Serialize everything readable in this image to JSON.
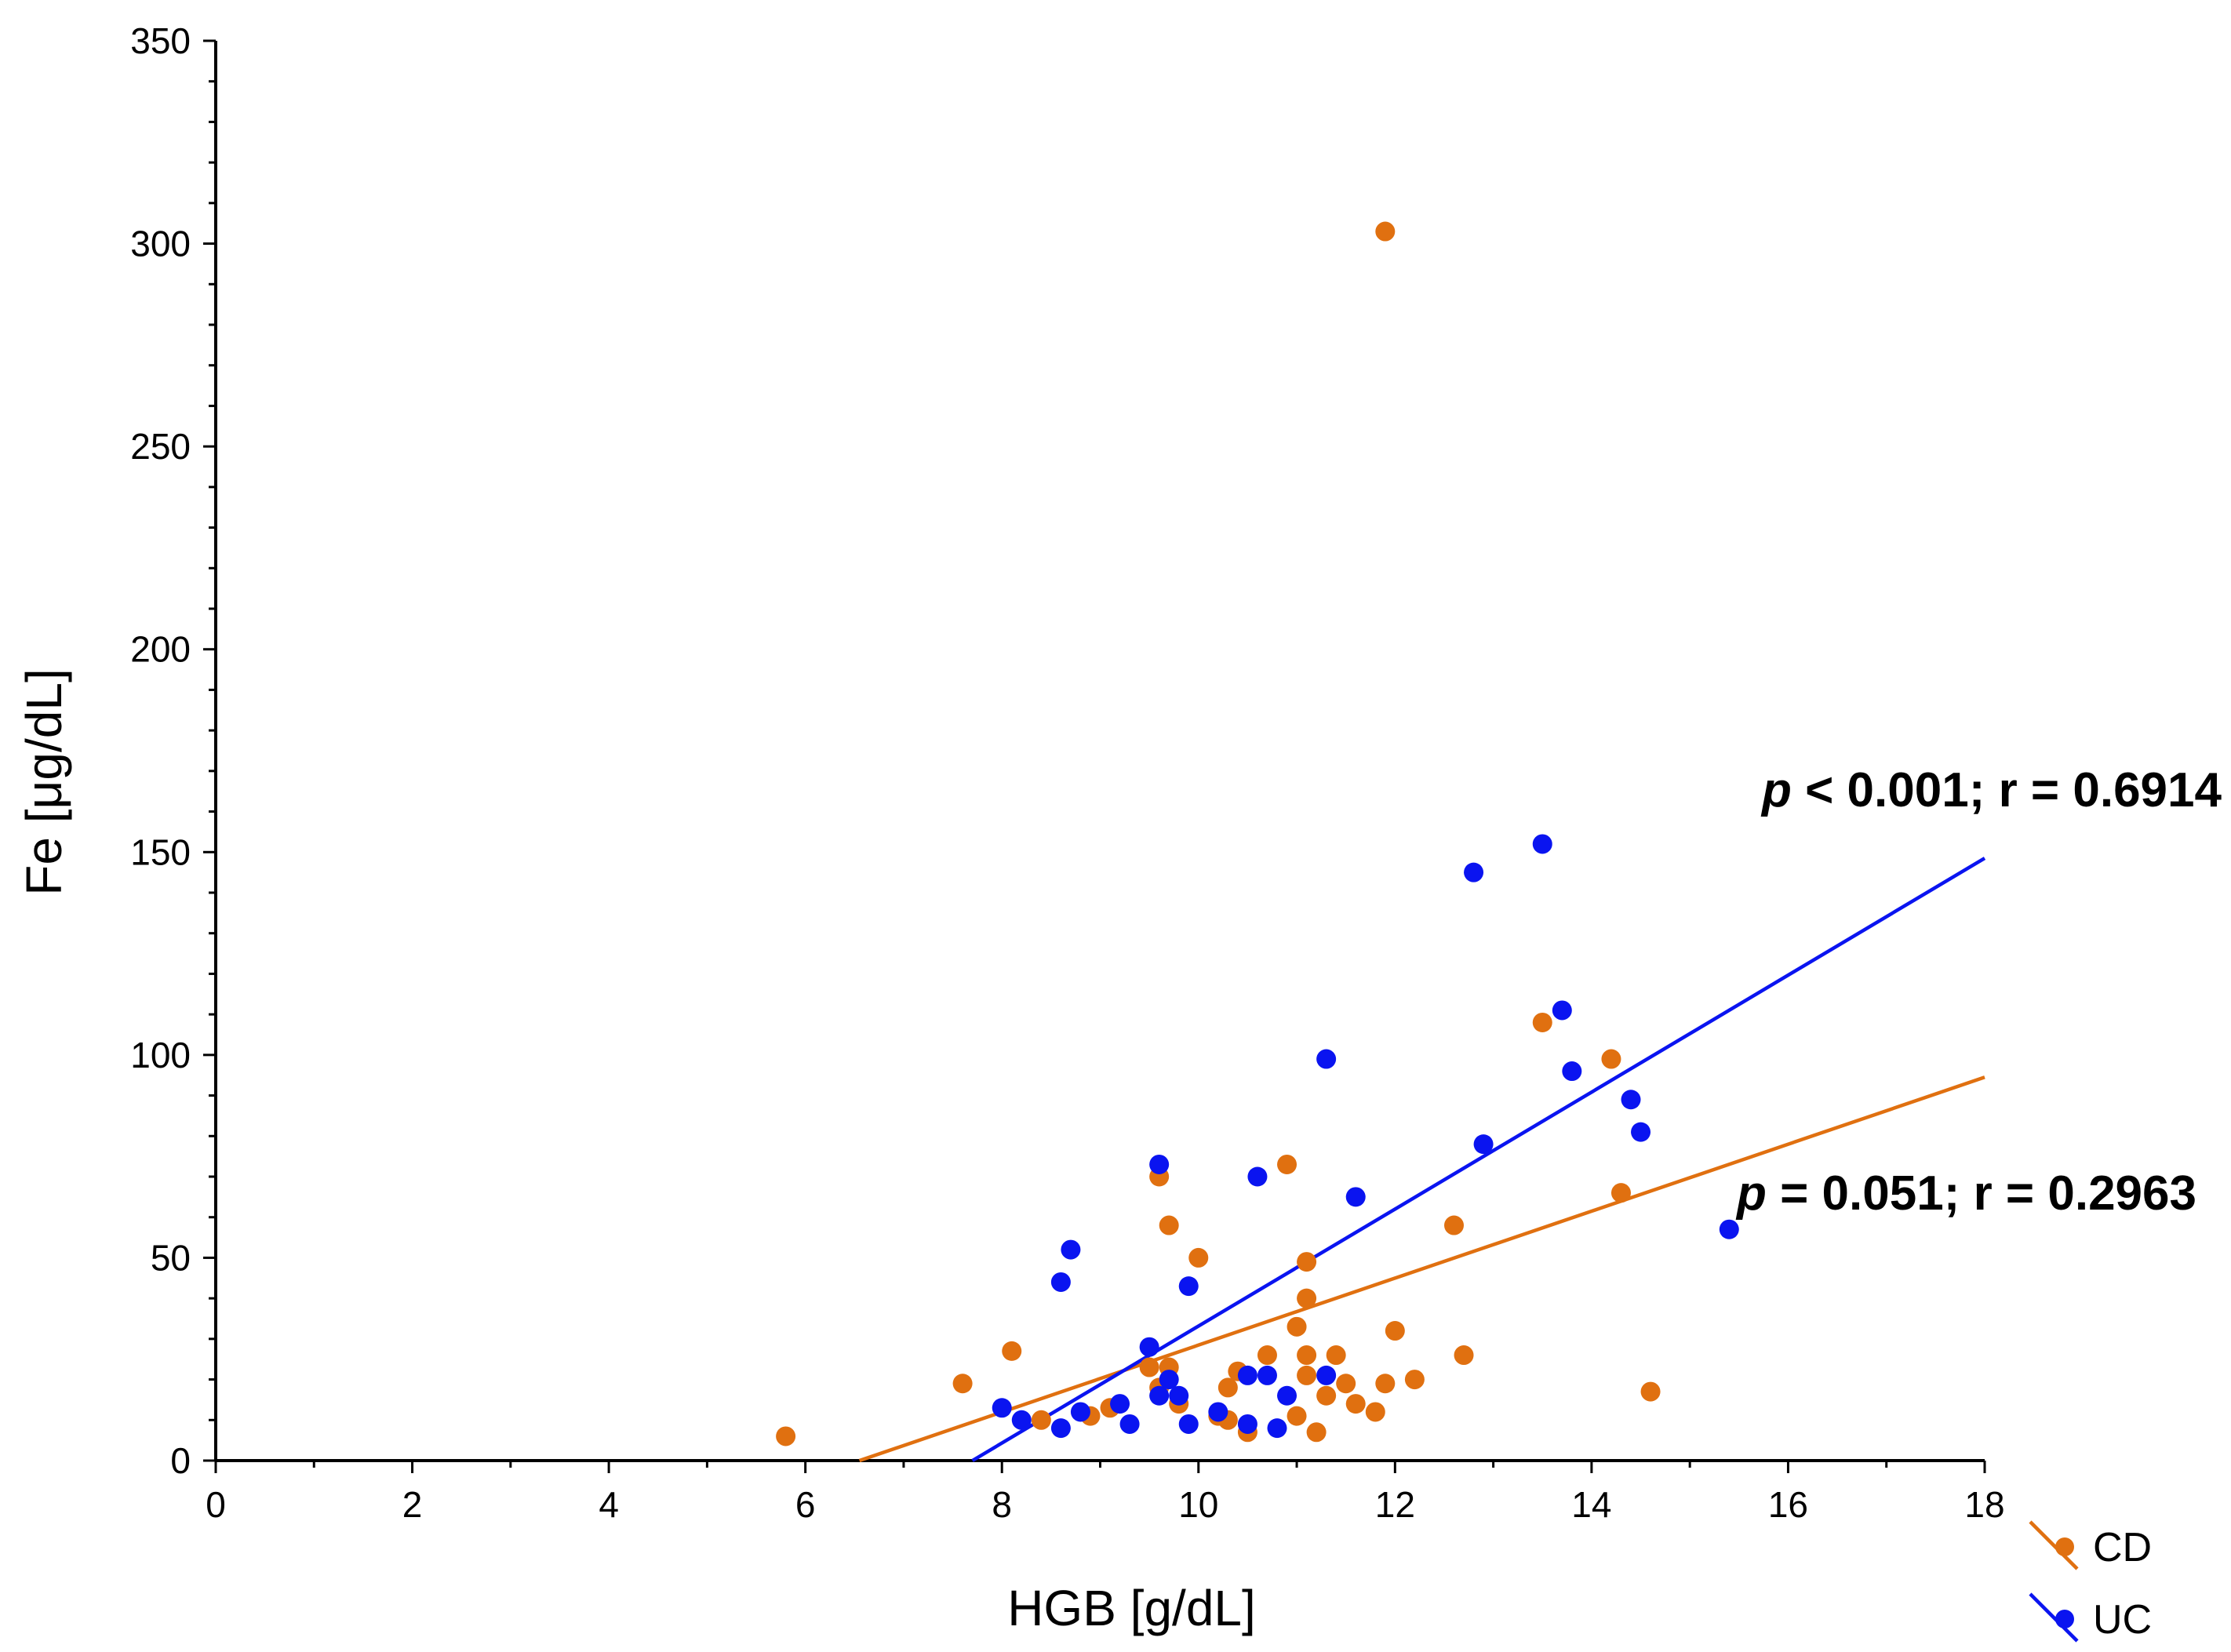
{
  "chart_data": {
    "type": "scatter",
    "title": "",
    "xlabel": "HGB [g/dL]",
    "ylabel": "Fe [μg/dL]",
    "xlim": [
      0,
      18
    ],
    "ylim": [
      0,
      350
    ],
    "x_ticks": [
      0,
      2,
      4,
      6,
      8,
      10,
      12,
      14,
      16,
      18
    ],
    "y_ticks": [
      0,
      50,
      100,
      150,
      200,
      250,
      300,
      350
    ],
    "grid": false,
    "legend_position": "bottom-right",
    "series": [
      {
        "name": "CD",
        "color": "#E07010",
        "points": [
          [
            5.8,
            6
          ],
          [
            7.6,
            19
          ],
          [
            8.1,
            27
          ],
          [
            8.4,
            10
          ],
          [
            8.9,
            11
          ],
          [
            9.1,
            13
          ],
          [
            9.5,
            23
          ],
          [
            9.6,
            70
          ],
          [
            9.6,
            18
          ],
          [
            9.7,
            58
          ],
          [
            9.7,
            23
          ],
          [
            9.8,
            14
          ],
          [
            10.0,
            50
          ],
          [
            10.2,
            11
          ],
          [
            10.3,
            18
          ],
          [
            10.3,
            10
          ],
          [
            10.4,
            22
          ],
          [
            10.5,
            7
          ],
          [
            10.7,
            26
          ],
          [
            10.9,
            73
          ],
          [
            11.0,
            33
          ],
          [
            11.0,
            11
          ],
          [
            11.1,
            49
          ],
          [
            11.1,
            40
          ],
          [
            11.1,
            26
          ],
          [
            11.1,
            21
          ],
          [
            11.2,
            7
          ],
          [
            11.3,
            16
          ],
          [
            11.4,
            26
          ],
          [
            11.5,
            19
          ],
          [
            11.6,
            14
          ],
          [
            11.8,
            12
          ],
          [
            11.9,
            19
          ],
          [
            11.9,
            303
          ],
          [
            12.0,
            32
          ],
          [
            12.2,
            20
          ],
          [
            12.6,
            58
          ],
          [
            12.7,
            26
          ],
          [
            13.5,
            108
          ],
          [
            14.2,
            99
          ],
          [
            14.3,
            66
          ],
          [
            14.6,
            17
          ]
        ],
        "fit": {
          "x1": 6.55,
          "x2": 18,
          "y_at_x1": 0,
          "y_at_x2": 94.5
        },
        "annotation": {
          "p": "p",
          "rest": " = 0.051; r = 0.2963"
        }
      },
      {
        "name": "UC",
        "color": "#0A14F0",
        "points": [
          [
            8.0,
            13
          ],
          [
            8.2,
            10
          ],
          [
            8.6,
            8
          ],
          [
            8.6,
            44
          ],
          [
            8.7,
            52
          ],
          [
            8.8,
            12
          ],
          [
            9.2,
            14
          ],
          [
            9.3,
            9
          ],
          [
            9.5,
            28
          ],
          [
            9.6,
            73
          ],
          [
            9.6,
            16
          ],
          [
            9.7,
            20
          ],
          [
            9.8,
            16
          ],
          [
            9.9,
            9
          ],
          [
            9.9,
            43
          ],
          [
            10.2,
            12
          ],
          [
            10.5,
            21
          ],
          [
            10.5,
            9
          ],
          [
            10.6,
            70
          ],
          [
            10.7,
            21
          ],
          [
            10.8,
            8
          ],
          [
            10.9,
            16
          ],
          [
            11.3,
            21
          ],
          [
            11.3,
            99
          ],
          [
            11.6,
            65
          ],
          [
            12.8,
            145
          ],
          [
            12.9,
            78
          ],
          [
            13.5,
            152
          ],
          [
            13.7,
            111
          ],
          [
            13.8,
            96
          ],
          [
            14.4,
            89
          ],
          [
            14.5,
            81
          ],
          [
            15.4,
            57
          ]
        ],
        "fit": {
          "x1": 7.7,
          "x2": 18,
          "y_at_x1": 0,
          "y_at_x2": 148.5
        },
        "annotation": {
          "p": "p",
          "rest": " < 0.001; r = 0.6914"
        }
      }
    ]
  }
}
